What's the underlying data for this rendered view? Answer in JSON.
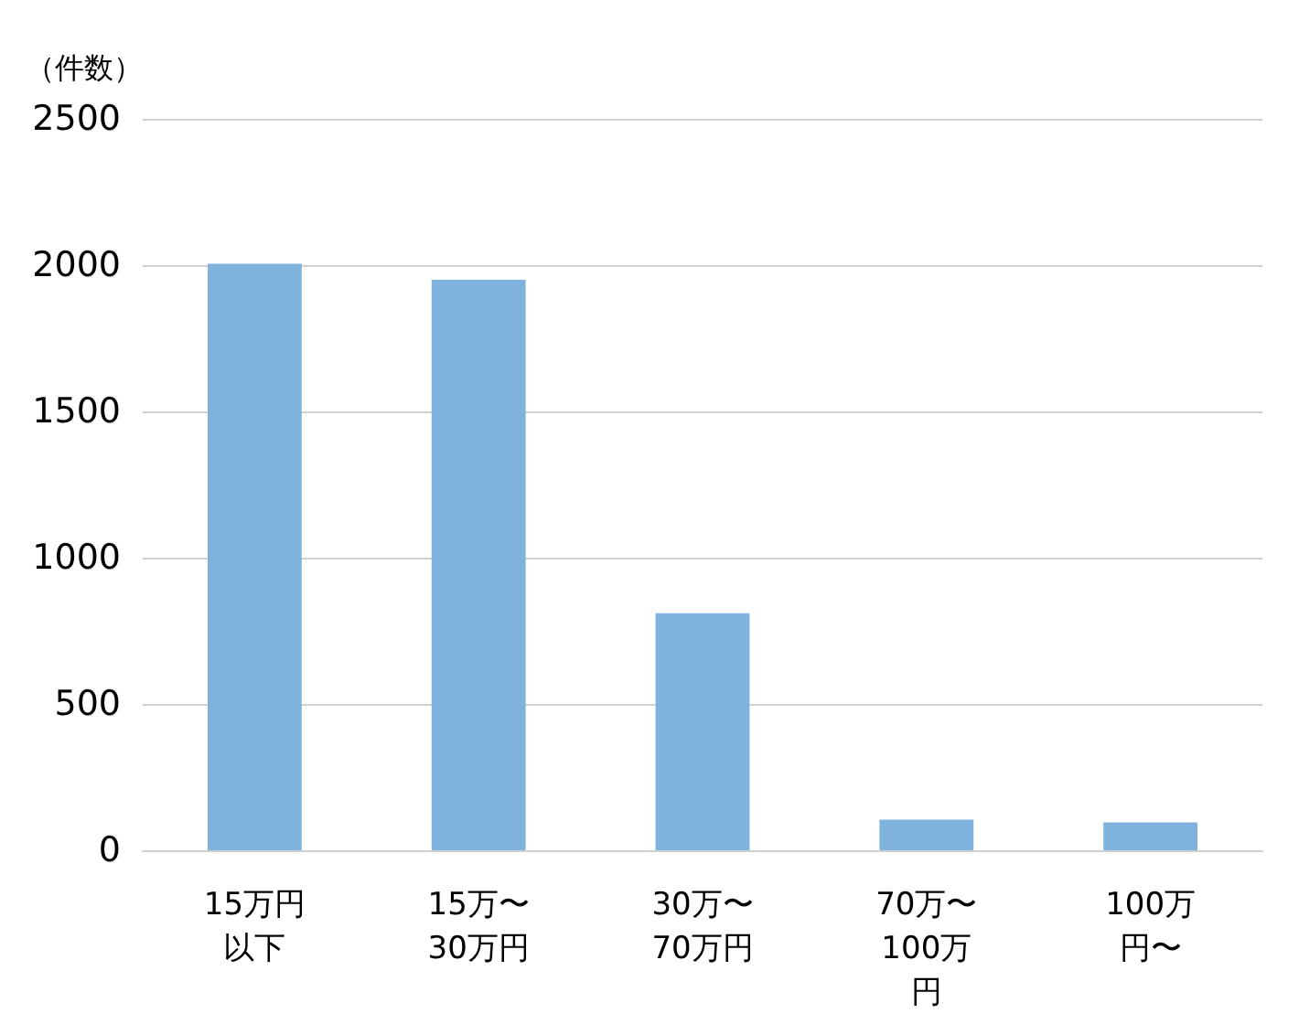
{
  "chart_data": {
    "type": "bar",
    "ylabel": "（件数）",
    "categories": [
      "15万円以下",
      "15万〜30万円",
      "30万〜70万円",
      "70万〜100万円",
      "100万円〜"
    ],
    "values": [
      2005,
      1950,
      810,
      105,
      95
    ],
    "color": "#7fb2dc",
    "ylim": [
      0,
      2500
    ],
    "yticks": [
      0,
      500,
      1000,
      1500,
      2000,
      2500
    ],
    "grid": "y"
  }
}
